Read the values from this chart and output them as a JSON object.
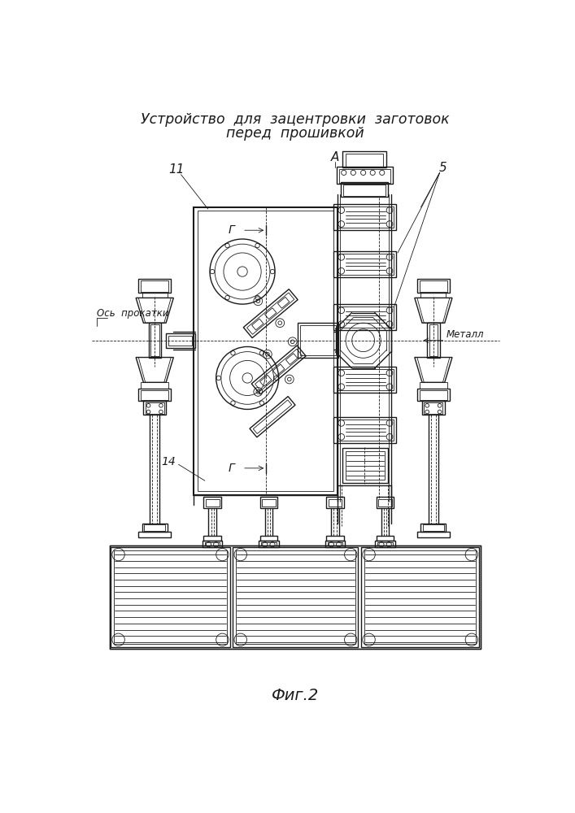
{
  "title_line1": "Устройство  для  зацентровки  заготовок",
  "title_line2": "перед  прошивкой",
  "fig_label": "Фиг.2",
  "label_A": "А",
  "label_G": "Г",
  "label_11": "11",
  "label_5": "5",
  "label_14": "14",
  "label_ось": "Ось  прокатки",
  "label_металл": "Металл",
  "bg_color": "#ffffff",
  "line_color": "#1a1a1a",
  "title_font_size": 12.5,
  "fig_label_font_size": 14
}
